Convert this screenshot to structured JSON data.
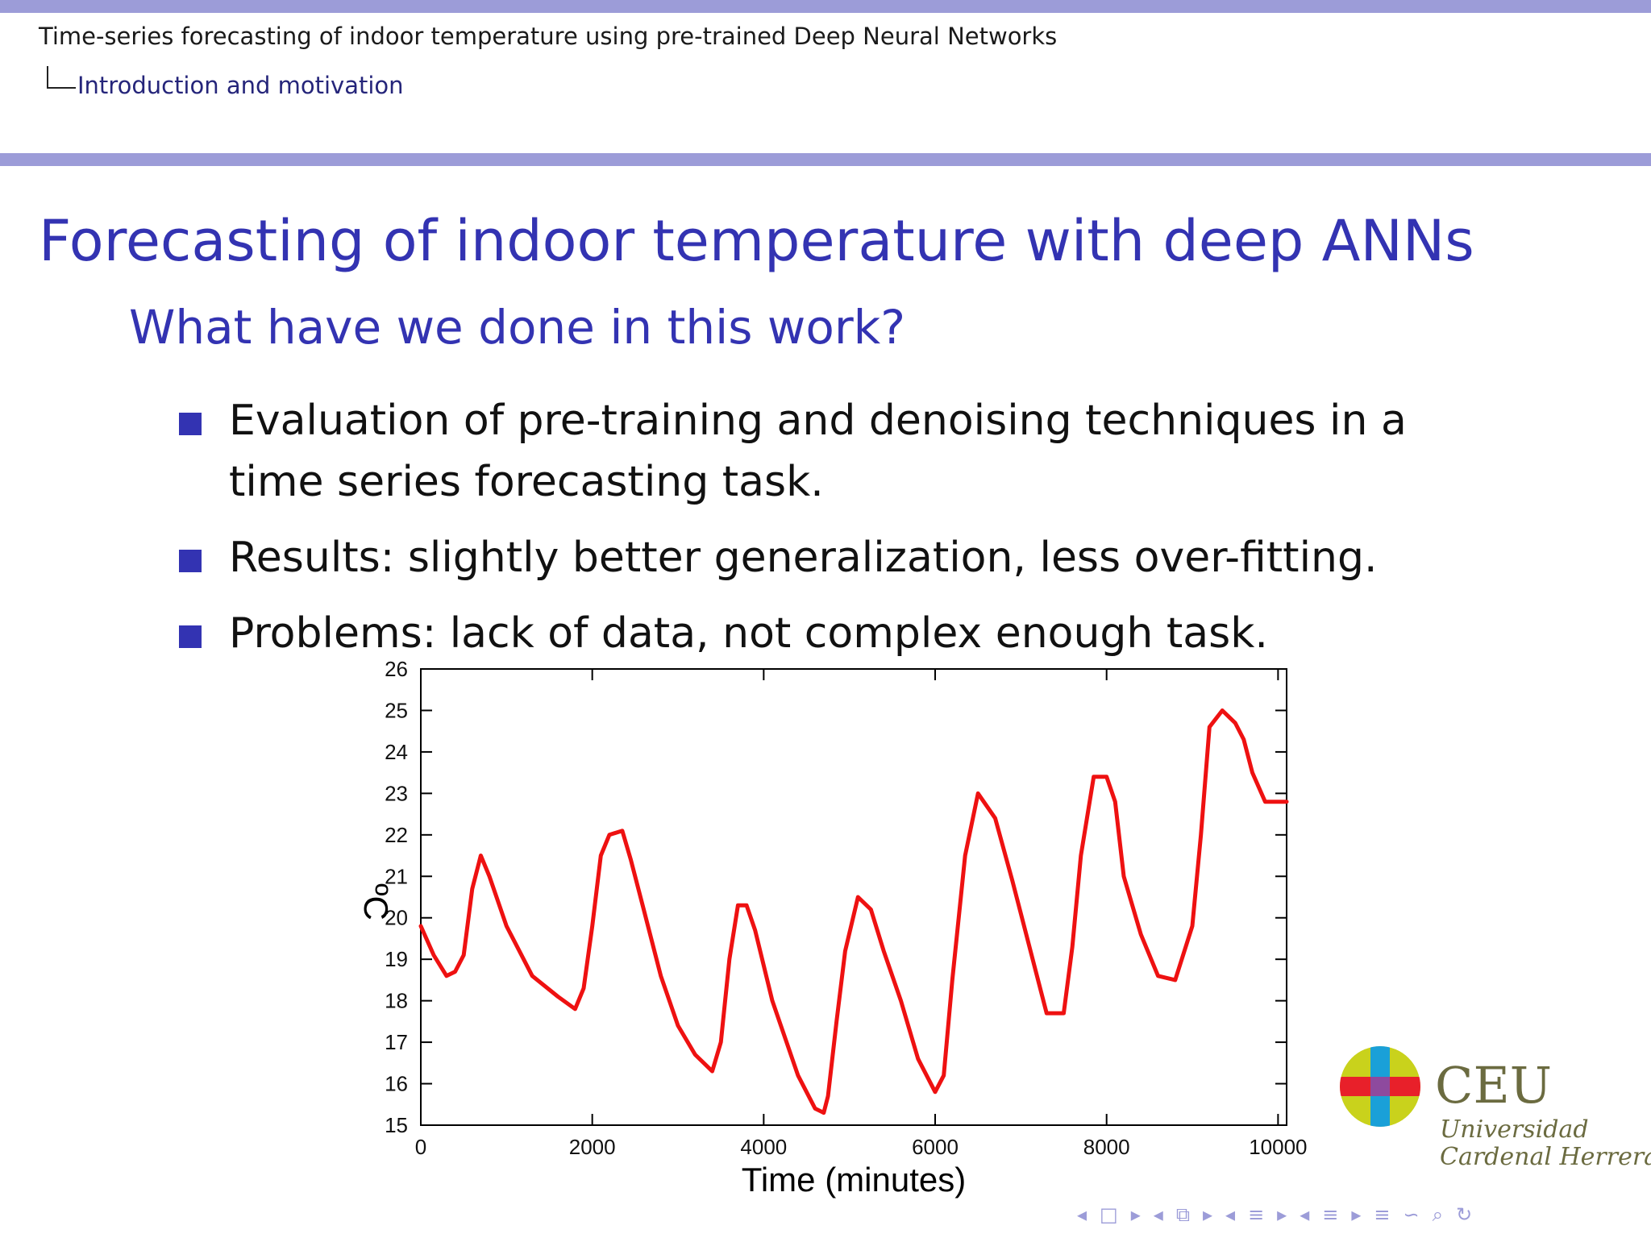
{
  "header": {
    "presentation_title": "Time-series forecasting of indoor temperature using pre-trained Deep Neural Networks",
    "section": "Introduction and motivation"
  },
  "frame": {
    "title": "Forecasting of indoor temperature with deep ANNs",
    "subtitle": "What have we done in this work?",
    "bullets": [
      "Evaluation of pre-training and denoising techniques in a time series forecasting task.",
      "Results: slightly better generalization, less over-fitting.",
      "Problems: lack of data, not complex enough task."
    ]
  },
  "chart_data": {
    "type": "line",
    "title": "",
    "xlabel": "Time (minutes)",
    "ylabel": "ºC",
    "xlim": [
      0,
      10100
    ],
    "ylim": [
      15,
      26
    ],
    "xticks": [
      0,
      2000,
      4000,
      6000,
      8000,
      10000
    ],
    "yticks": [
      15,
      16,
      17,
      18,
      19,
      20,
      21,
      22,
      23,
      24,
      25,
      26
    ],
    "grid": false,
    "legend": "none",
    "series": [
      {
        "color": "#ee1111",
        "x": [
          0,
          150,
          300,
          400,
          500,
          600,
          700,
          800,
          1000,
          1300,
          1600,
          1800,
          1900,
          2000,
          2100,
          2200,
          2350,
          2450,
          2600,
          2800,
          3000,
          3200,
          3400,
          3500,
          3600,
          3700,
          3800,
          3900,
          4100,
          4400,
          4600,
          4700,
          4750,
          4850,
          4950,
          5100,
          5250,
          5400,
          5600,
          5800,
          6000,
          6100,
          6200,
          6350,
          6500,
          6700,
          6900,
          7100,
          7300,
          7500,
          7600,
          7700,
          7850,
          8000,
          8100,
          8200,
          8400,
          8600,
          8800,
          9000,
          9100,
          9200,
          9350,
          9500,
          9600,
          9700,
          9850,
          10000,
          10100
        ],
        "y": [
          19.8,
          19.1,
          18.6,
          18.7,
          19.1,
          20.7,
          21.5,
          21.0,
          19.8,
          18.6,
          18.1,
          17.8,
          18.3,
          19.8,
          21.5,
          22.0,
          22.1,
          21.4,
          20.2,
          18.6,
          17.4,
          16.7,
          16.3,
          17.0,
          19.0,
          20.3,
          20.3,
          19.7,
          18.0,
          16.2,
          15.4,
          15.3,
          15.7,
          17.5,
          19.2,
          20.5,
          20.2,
          19.2,
          18.0,
          16.6,
          15.8,
          16.2,
          18.5,
          21.5,
          23.0,
          22.4,
          20.9,
          19.3,
          17.7,
          17.7,
          19.3,
          21.5,
          23.4,
          23.4,
          22.8,
          21.0,
          19.6,
          18.6,
          18.5,
          19.8,
          22.0,
          24.6,
          25.0,
          24.7,
          24.3,
          23.5,
          22.8,
          22.8,
          22.8
        ]
      }
    ]
  },
  "logo": {
    "name": "CEU",
    "line1": "Universidad",
    "line2": "Cardenal Herrera",
    "colors": {
      "red": "#e8202a",
      "cyan": "#1aa0d8",
      "yellow": "#c9d21c",
      "purple": "#8e4a9e"
    }
  },
  "navigation": {
    "icons": [
      "◂",
      "□",
      "▸",
      "◂",
      "⧉",
      "▸",
      "◂",
      "≡",
      "▸",
      "◂",
      "≡",
      "▸",
      "≡",
      "∽",
      "⌕",
      "↻"
    ]
  }
}
